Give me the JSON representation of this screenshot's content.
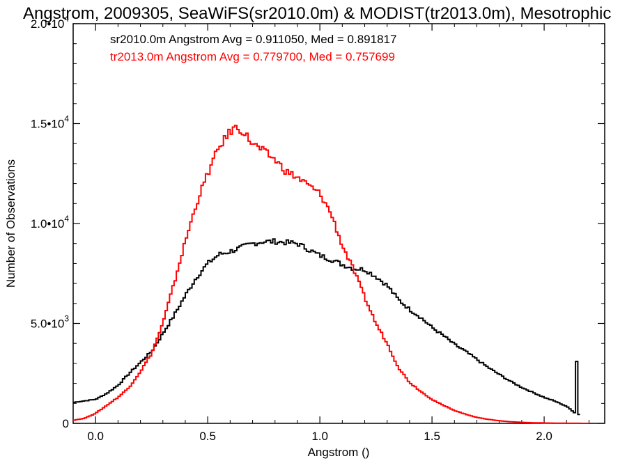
{
  "chart_data": {
    "type": "line",
    "title": "Angstrom, 2009305, SeaWiFS(sr2010.0m) & MODIST(tr2013.0m), Mesotrophic",
    "xlabel": "Angstrom ()",
    "ylabel": "Number of Observations",
    "xlim": [
      -0.1,
      2.27
    ],
    "ylim": [
      0,
      20000
    ],
    "x_ticks": [
      {
        "value": 0.0,
        "label": "0.0"
      },
      {
        "value": 0.5,
        "label": "0.5"
      },
      {
        "value": 1.0,
        "label": "1.0"
      },
      {
        "value": 1.5,
        "label": "1.5"
      },
      {
        "value": 2.0,
        "label": "2.0"
      }
    ],
    "y_ticks": [
      {
        "value": 0,
        "label": "0",
        "exp": ""
      },
      {
        "value": 5000,
        "label": "5.0•10",
        "exp": "3"
      },
      {
        "value": 10000,
        "label": "1.0•10",
        "exp": "4"
      },
      {
        "value": 15000,
        "label": "1.5•10",
        "exp": "4"
      },
      {
        "value": 20000,
        "label": "2.0•10",
        "exp": "4"
      }
    ],
    "annotations": [
      {
        "text": "sr2010.0m Angstrom Avg = 0.911050, Med = 0.891817",
        "color": "#000000"
      },
      {
        "text": "tr2013.0m Angstrom Avg = 0.779700, Med = 0.757699",
        "color": "#ff0000"
      }
    ],
    "grid": false,
    "series": [
      {
        "color": "#000000",
        "step": true,
        "points": [
          [
            -0.1,
            1050
          ],
          [
            0.0,
            1200
          ],
          [
            0.05,
            1500
          ],
          [
            0.1,
            1900
          ],
          [
            0.15,
            2500
          ],
          [
            0.2,
            3050
          ],
          [
            0.25,
            3600
          ],
          [
            0.3,
            4500
          ],
          [
            0.35,
            5400
          ],
          [
            0.4,
            6400
          ],
          [
            0.45,
            7300
          ],
          [
            0.5,
            8000
          ],
          [
            0.55,
            8450
          ],
          [
            0.6,
            8600
          ],
          [
            0.65,
            8800
          ],
          [
            0.7,
            9000
          ],
          [
            0.75,
            9100
          ],
          [
            0.8,
            9100
          ],
          [
            0.85,
            9050
          ],
          [
            0.9,
            9000
          ],
          [
            0.95,
            8700
          ],
          [
            1.0,
            8400
          ],
          [
            1.05,
            8200
          ],
          [
            1.1,
            7950
          ],
          [
            1.15,
            7750
          ],
          [
            1.2,
            7700
          ],
          [
            1.25,
            7350
          ],
          [
            1.3,
            6900
          ],
          [
            1.35,
            6200
          ],
          [
            1.4,
            5700
          ],
          [
            1.45,
            5300
          ],
          [
            1.5,
            4800
          ],
          [
            1.55,
            4400
          ],
          [
            1.6,
            3950
          ],
          [
            1.65,
            3600
          ],
          [
            1.7,
            3200
          ],
          [
            1.75,
            2800
          ],
          [
            1.8,
            2450
          ],
          [
            1.85,
            2100
          ],
          [
            1.9,
            1800
          ],
          [
            1.95,
            1550
          ],
          [
            2.0,
            1300
          ],
          [
            2.05,
            1100
          ],
          [
            2.1,
            850
          ],
          [
            2.14,
            500
          ],
          [
            2.145,
            3100
          ],
          [
            2.155,
            450
          ],
          [
            2.16,
            0
          ]
        ]
      },
      {
        "color": "#ff0000",
        "step": true,
        "points": [
          [
            -0.1,
            150
          ],
          [
            -0.05,
            250
          ],
          [
            0.0,
            500
          ],
          [
            0.05,
            900
          ],
          [
            0.1,
            1300
          ],
          [
            0.15,
            1800
          ],
          [
            0.2,
            2600
          ],
          [
            0.25,
            3500
          ],
          [
            0.3,
            5000
          ],
          [
            0.35,
            7000
          ],
          [
            0.4,
            9100
          ],
          [
            0.45,
            11000
          ],
          [
            0.5,
            12500
          ],
          [
            0.55,
            13800
          ],
          [
            0.6,
            14600
          ],
          [
            0.62,
            14800
          ],
          [
            0.65,
            14700
          ],
          [
            0.7,
            14000
          ],
          [
            0.75,
            13600
          ],
          [
            0.8,
            13200
          ],
          [
            0.85,
            12600
          ],
          [
            0.9,
            12300
          ],
          [
            0.95,
            11900
          ],
          [
            1.0,
            11500
          ],
          [
            1.05,
            10500
          ],
          [
            1.1,
            8900
          ],
          [
            1.15,
            7700
          ],
          [
            1.2,
            6300
          ],
          [
            1.25,
            5000
          ],
          [
            1.3,
            4000
          ],
          [
            1.35,
            2800
          ],
          [
            1.4,
            2050
          ],
          [
            1.45,
            1600
          ],
          [
            1.5,
            1200
          ],
          [
            1.55,
            900
          ],
          [
            1.6,
            650
          ],
          [
            1.65,
            450
          ],
          [
            1.7,
            300
          ],
          [
            1.75,
            200
          ],
          [
            1.8,
            130
          ],
          [
            1.85,
            80
          ],
          [
            1.9,
            50
          ],
          [
            1.95,
            30
          ],
          [
            2.0,
            20
          ],
          [
            2.05,
            10
          ],
          [
            2.1,
            5
          ],
          [
            2.2,
            0
          ]
        ]
      }
    ]
  }
}
